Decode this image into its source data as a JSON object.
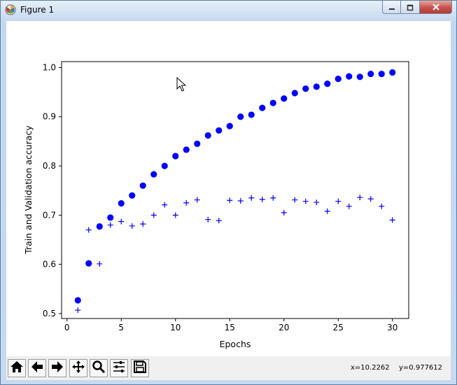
{
  "window": {
    "title": "Figure 1",
    "icon": "matplotlib-figure-icon",
    "controls": [
      "minimize-icon",
      "maximize-icon",
      "close-icon"
    ]
  },
  "chart_data": {
    "type": "scatter",
    "title": "",
    "xlabel": "Epochs",
    "ylabel": "Train and Validation accuracy",
    "xlim": [
      -0.5,
      31.5
    ],
    "ylim": [
      0.49,
      1.012
    ],
    "xticks": [
      0,
      5,
      10,
      15,
      20,
      25,
      30
    ],
    "yticks": [
      0.5,
      0.6,
      0.7,
      0.8,
      0.9,
      1.0
    ],
    "xtick_labels": [
      "0",
      "5",
      "10",
      "15",
      "20",
      "25",
      "30"
    ],
    "ytick_labels": [
      "0.5",
      "0.6",
      "0.7",
      "0.8",
      "0.9",
      "1.0"
    ],
    "grid": false,
    "legend": "none",
    "x": [
      1,
      2,
      3,
      4,
      5,
      6,
      7,
      8,
      9,
      10,
      11,
      12,
      13,
      14,
      15,
      16,
      17,
      18,
      19,
      20,
      21,
      22,
      23,
      24,
      25,
      26,
      27,
      28,
      29,
      30
    ],
    "series": [
      {
        "marker": "circle",
        "color": "#0000ff",
        "values": [
          0.527,
          0.602,
          0.677,
          0.695,
          0.724,
          0.74,
          0.76,
          0.783,
          0.8,
          0.82,
          0.833,
          0.845,
          0.862,
          0.872,
          0.881,
          0.9,
          0.904,
          0.918,
          0.928,
          0.937,
          0.948,
          0.957,
          0.961,
          0.967,
          0.977,
          0.982,
          0.981,
          0.987,
          0.987,
          0.99
        ]
      },
      {
        "marker": "plus",
        "color": "#0000ff",
        "values": [
          0.507,
          0.67,
          0.601,
          0.68,
          0.687,
          0.678,
          0.682,
          0.7,
          0.721,
          0.7,
          0.725,
          0.731,
          0.691,
          0.689,
          0.73,
          0.729,
          0.735,
          0.732,
          0.735,
          0.705,
          0.731,
          0.728,
          0.726,
          0.708,
          0.728,
          0.718,
          0.736,
          0.733,
          0.718,
          0.69
        ]
      }
    ]
  },
  "toolbar": {
    "buttons": [
      {
        "icon": "home-icon",
        "name": "home-button"
      },
      {
        "icon": "back-arrow-icon",
        "name": "back-button"
      },
      {
        "icon": "forward-arrow-icon",
        "name": "forward-button"
      },
      {
        "icon": "pan-icon",
        "name": "pan-button"
      },
      {
        "icon": "zoom-icon",
        "name": "zoom-button"
      },
      {
        "icon": "sliders-icon",
        "name": "configure-subplots-button"
      },
      {
        "icon": "save-icon",
        "name": "save-button"
      }
    ],
    "x_readout": "x=10.2262",
    "y_readout": "y=0.977612"
  }
}
